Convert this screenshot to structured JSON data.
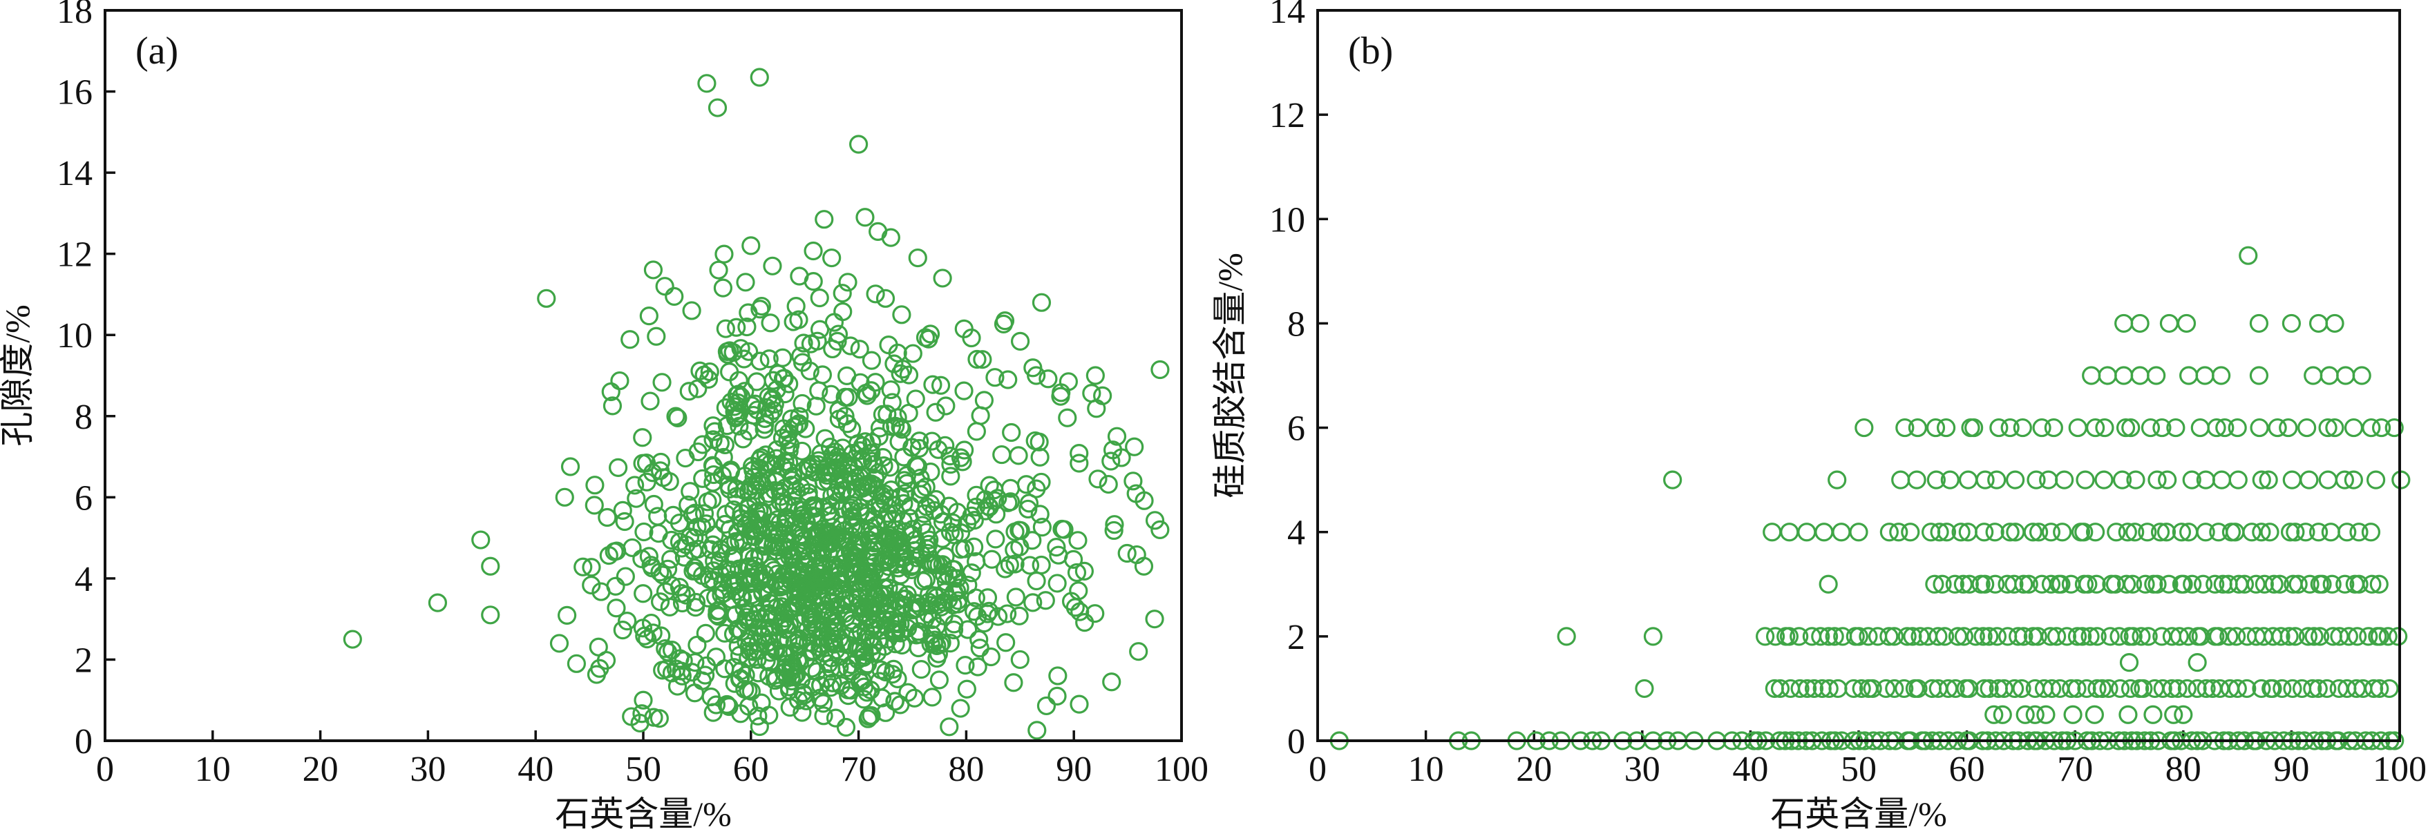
{
  "figure": {
    "background": "#ffffff",
    "frame_color": "#111111",
    "text_color": "#111111"
  },
  "chart_data": [
    {
      "type": "scatter",
      "panel_label": "(a)",
      "xlabel": "石英含量/%",
      "ylabel": "孔隙度/%",
      "xlim": [
        0,
        100
      ],
      "ylim": [
        0,
        18
      ],
      "xticks": [
        0,
        10,
        20,
        30,
        40,
        50,
        60,
        70,
        80,
        90,
        100
      ],
      "yticks": [
        0,
        2,
        4,
        6,
        8,
        10,
        12,
        14,
        16,
        18
      ],
      "grid": false,
      "legend": null,
      "marker": {
        "shape": "open-circle",
        "color": "#3fa546",
        "radius_px": 12,
        "stroke_px": 3.2
      },
      "seed": 42,
      "points": [
        [
          23,
          2.5
        ],
        [
          30.9,
          3.4
        ],
        [
          34.9,
          4.95
        ],
        [
          35.8,
          4.3
        ],
        [
          35.8,
          3.1
        ],
        [
          41,
          10.9
        ],
        [
          42.7,
          6.0
        ],
        [
          42.2,
          2.4
        ],
        [
          43.8,
          1.9
        ],
        [
          45.5,
          6.3
        ],
        [
          47,
          8.6
        ],
        [
          48.5,
          2.95
        ],
        [
          50,
          1.0
        ],
        [
          51.5,
          0.55
        ],
        [
          52,
          11.2
        ],
        [
          54.5,
          10.6
        ],
        [
          55.9,
          16.2
        ],
        [
          56.9,
          15.6
        ],
        [
          57,
          11.6
        ],
        [
          59.5,
          11.3
        ],
        [
          60,
          12.2
        ],
        [
          60.8,
          16.35
        ],
        [
          62,
          11.7
        ],
        [
          64.5,
          11.45
        ],
        [
          66.8,
          12.85
        ],
        [
          67.5,
          11.9
        ],
        [
          69,
          11.3
        ],
        [
          70,
          14.7
        ],
        [
          70.6,
          12.9
        ],
        [
          71.8,
          12.55
        ],
        [
          73,
          12.4
        ],
        [
          72.5,
          10.9
        ],
        [
          74,
          10.5
        ],
        [
          75.5,
          11.9
        ],
        [
          76.5,
          9.9
        ],
        [
          77.8,
          11.4
        ],
        [
          79.8,
          10.15
        ],
        [
          81,
          9.4
        ],
        [
          83.6,
          10.35
        ],
        [
          87,
          10.8
        ],
        [
          86.5,
          9.0
        ],
        [
          89.5,
          8.85
        ],
        [
          92,
          9.0
        ],
        [
          94,
          7.5
        ],
        [
          95.5,
          6.4
        ],
        [
          96.5,
          4.3
        ],
        [
          97.5,
          3.0
        ],
        [
          98,
          5.2
        ],
        [
          96,
          2.2
        ],
        [
          93.5,
          1.45
        ],
        [
          90.5,
          0.9
        ],
        [
          88.5,
          1.6
        ],
        [
          85,
          2.0
        ]
      ],
      "clusters": [
        {
          "n": 620,
          "cx": 66.5,
          "cy": 3.4,
          "sx": 6.5,
          "sy": 1.5
        },
        {
          "n": 320,
          "cx": 67.0,
          "cy": 5.8,
          "sx": 8.5,
          "sy": 1.4
        },
        {
          "n": 135,
          "cx": 64.0,
          "cy": 8.7,
          "sx": 8.0,
          "sy": 1.5
        },
        {
          "n": 160,
          "cx": 70.0,
          "cy": 4.6,
          "sx": 11.0,
          "sy": 2.6
        },
        {
          "n": 60,
          "cx": 88.0,
          "cy": 4.8,
          "sx": 5.5,
          "sy": 2.3
        },
        {
          "n": 45,
          "cx": 49.5,
          "cy": 3.2,
          "sx": 3.5,
          "sy": 1.6
        }
      ],
      "clip": {
        "x": [
          41,
          98.6
        ],
        "y": [
          0.18,
          12.3
        ]
      }
    },
    {
      "type": "scatter",
      "panel_label": "(b)",
      "xlabel": "石英含量/%",
      "ylabel": "硅质胶结含量/%",
      "xlim": [
        0,
        100
      ],
      "ylim": [
        0,
        14
      ],
      "xticks": [
        0,
        10,
        20,
        30,
        40,
        50,
        60,
        70,
        80,
        90,
        100
      ],
      "yticks": [
        0,
        2,
        4,
        6,
        8,
        10,
        12,
        14
      ],
      "grid": false,
      "legend": null,
      "marker": {
        "shape": "open-circle",
        "color": "#3fa546",
        "radius_px": 12,
        "stroke_px": 3.2
      },
      "seed": 7,
      "points": [],
      "rows": [
        {
          "y": 0,
          "xs": [
            2,
            13,
            14.2,
            18.4,
            20.2,
            21.4,
            22.5,
            24.3,
            25.4,
            26.2,
            28.2,
            29.5,
            31,
            32.3,
            33.3,
            34.8,
            36.9,
            38.3,
            39.2,
            40.3
          ]
        },
        {
          "y": 0,
          "from": 41,
          "to": 99.5,
          "n": 85
        },
        {
          "y": 0.5,
          "xs": [
            62.5,
            63.3,
            65.4,
            66.3,
            67.3,
            69.8,
            71.8,
            74.9,
            77.2,
            79.1,
            80
          ]
        },
        {
          "y": 1,
          "xs": [
            30.2
          ]
        },
        {
          "y": 1,
          "from": 42,
          "to": 99,
          "n": 72
        },
        {
          "y": 1.5,
          "xs": [
            75,
            81.3
          ]
        },
        {
          "y": 2,
          "xs": [
            23,
            31
          ]
        },
        {
          "y": 2,
          "from": 41.5,
          "to": 100,
          "n": 75
        },
        {
          "y": 3,
          "xs": [
            47.2
          ]
        },
        {
          "y": 3,
          "from": 57,
          "to": 98,
          "n": 52
        },
        {
          "y": 4,
          "xs": [
            42,
            43.6,
            45.2,
            46.8,
            48.4,
            50
          ]
        },
        {
          "y": 4,
          "from": 53,
          "to": 97,
          "n": 42
        },
        {
          "y": 5,
          "xs": [
            32.8,
            48
          ]
        },
        {
          "y": 5,
          "from": 53.5,
          "to": 99.5,
          "n": 30
        },
        {
          "y": 6,
          "xs": [
            50.5
          ]
        },
        {
          "y": 6,
          "from": 54,
          "to": 100,
          "n": 33
        },
        {
          "y": 7,
          "xs": [
            71.5,
            73,
            74.5,
            76,
            77.5,
            80.5,
            82,
            83.5,
            87,
            92,
            93.5,
            95,
            96.5
          ]
        },
        {
          "y": 8,
          "xs": [
            74.5,
            76,
            78.7,
            80.3,
            87,
            90,
            92.5,
            94
          ]
        },
        {
          "y": 9.3,
          "xs": [
            86
          ]
        }
      ]
    }
  ]
}
